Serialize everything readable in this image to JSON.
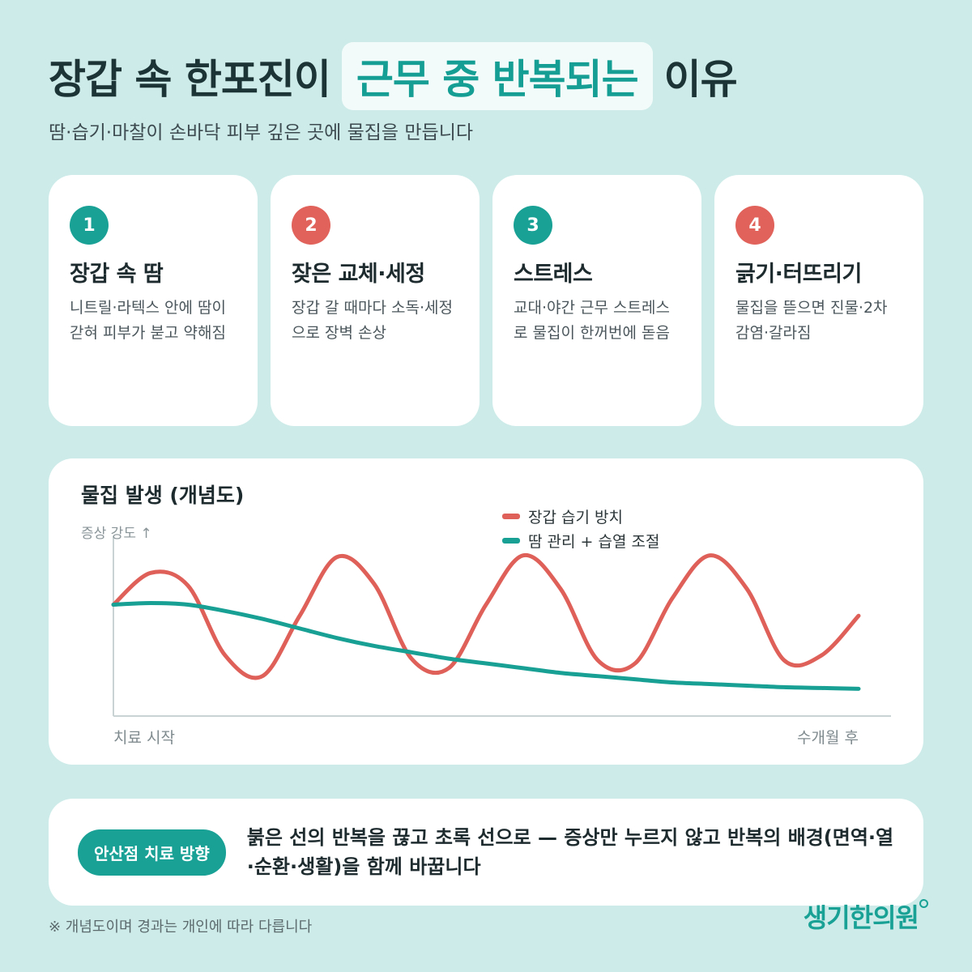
{
  "header": {
    "title_pre": "장갑 속 한포진이",
    "title_highlight": "근무 중 반복되는",
    "title_post": "이유",
    "subtitle": "땀·습기·마찰이 손바닥 피부 깊은 곳에 물집을 만듭니다"
  },
  "cards": [
    {
      "number": "1",
      "title": "장갑 속 땀",
      "desc": "니트릴·라텍스 안에 땀이 갇혀 피부가 붇고 약해짐",
      "color": "#19a196"
    },
    {
      "number": "2",
      "title": "잦은 교체·세정",
      "desc": "장갑 갈 때마다 소독·세정으로 장벽 손상",
      "color": "#e0625a"
    },
    {
      "number": "3",
      "title": "스트레스",
      "desc": "교대·야간 근무 스트레스로 물집이 한꺼번에 돋음",
      "color": "#19a196"
    },
    {
      "number": "4",
      "title": "긁기·터뜨리기",
      "desc": "물집을 뜯으면 진물·2차 감염·갈라짐",
      "color": "#e0625a"
    }
  ],
  "chart_data": {
    "type": "line",
    "title": "물집 발생 (개념도)",
    "ylabel": "증상 강도 ↑",
    "x_start_label": "치료 시작",
    "x_end_label": "수개월 후",
    "grid": false,
    "legend_position": "top-right",
    "x": [
      0,
      0.05,
      0.1,
      0.15,
      0.2,
      0.25,
      0.3,
      0.35,
      0.4,
      0.45,
      0.5,
      0.55,
      0.6,
      0.65,
      0.7,
      0.75,
      0.8,
      0.85,
      0.9,
      0.95,
      1.0
    ],
    "series": [
      {
        "name": "장갑 습기 방치",
        "color": "#de6059",
        "values": [
          0.62,
          0.82,
          0.74,
          0.3,
          0.17,
          0.55,
          0.92,
          0.75,
          0.28,
          0.22,
          0.62,
          0.93,
          0.72,
          0.27,
          0.25,
          0.66,
          0.93,
          0.72,
          0.27,
          0.3,
          0.55
        ]
      },
      {
        "name": "땀 관리 + 습열 조절",
        "color": "#18a095",
        "values": [
          0.62,
          0.63,
          0.62,
          0.58,
          0.53,
          0.47,
          0.41,
          0.36,
          0.32,
          0.28,
          0.25,
          0.22,
          0.19,
          0.17,
          0.15,
          0.13,
          0.12,
          0.11,
          0.1,
          0.095,
          0.09
        ]
      }
    ]
  },
  "direction": {
    "label": "안산점 치료 방향",
    "text": "붉은 선의 반복을 끊고 초록 선으로 — 증상만 누르지 않고 반복의 배경(면역·열·순환·생활)을 함께 바꿉니다"
  },
  "footnote": "※ 개념도이며 경과는 개인에 따라 다릅니다",
  "logo": "생기한의원"
}
